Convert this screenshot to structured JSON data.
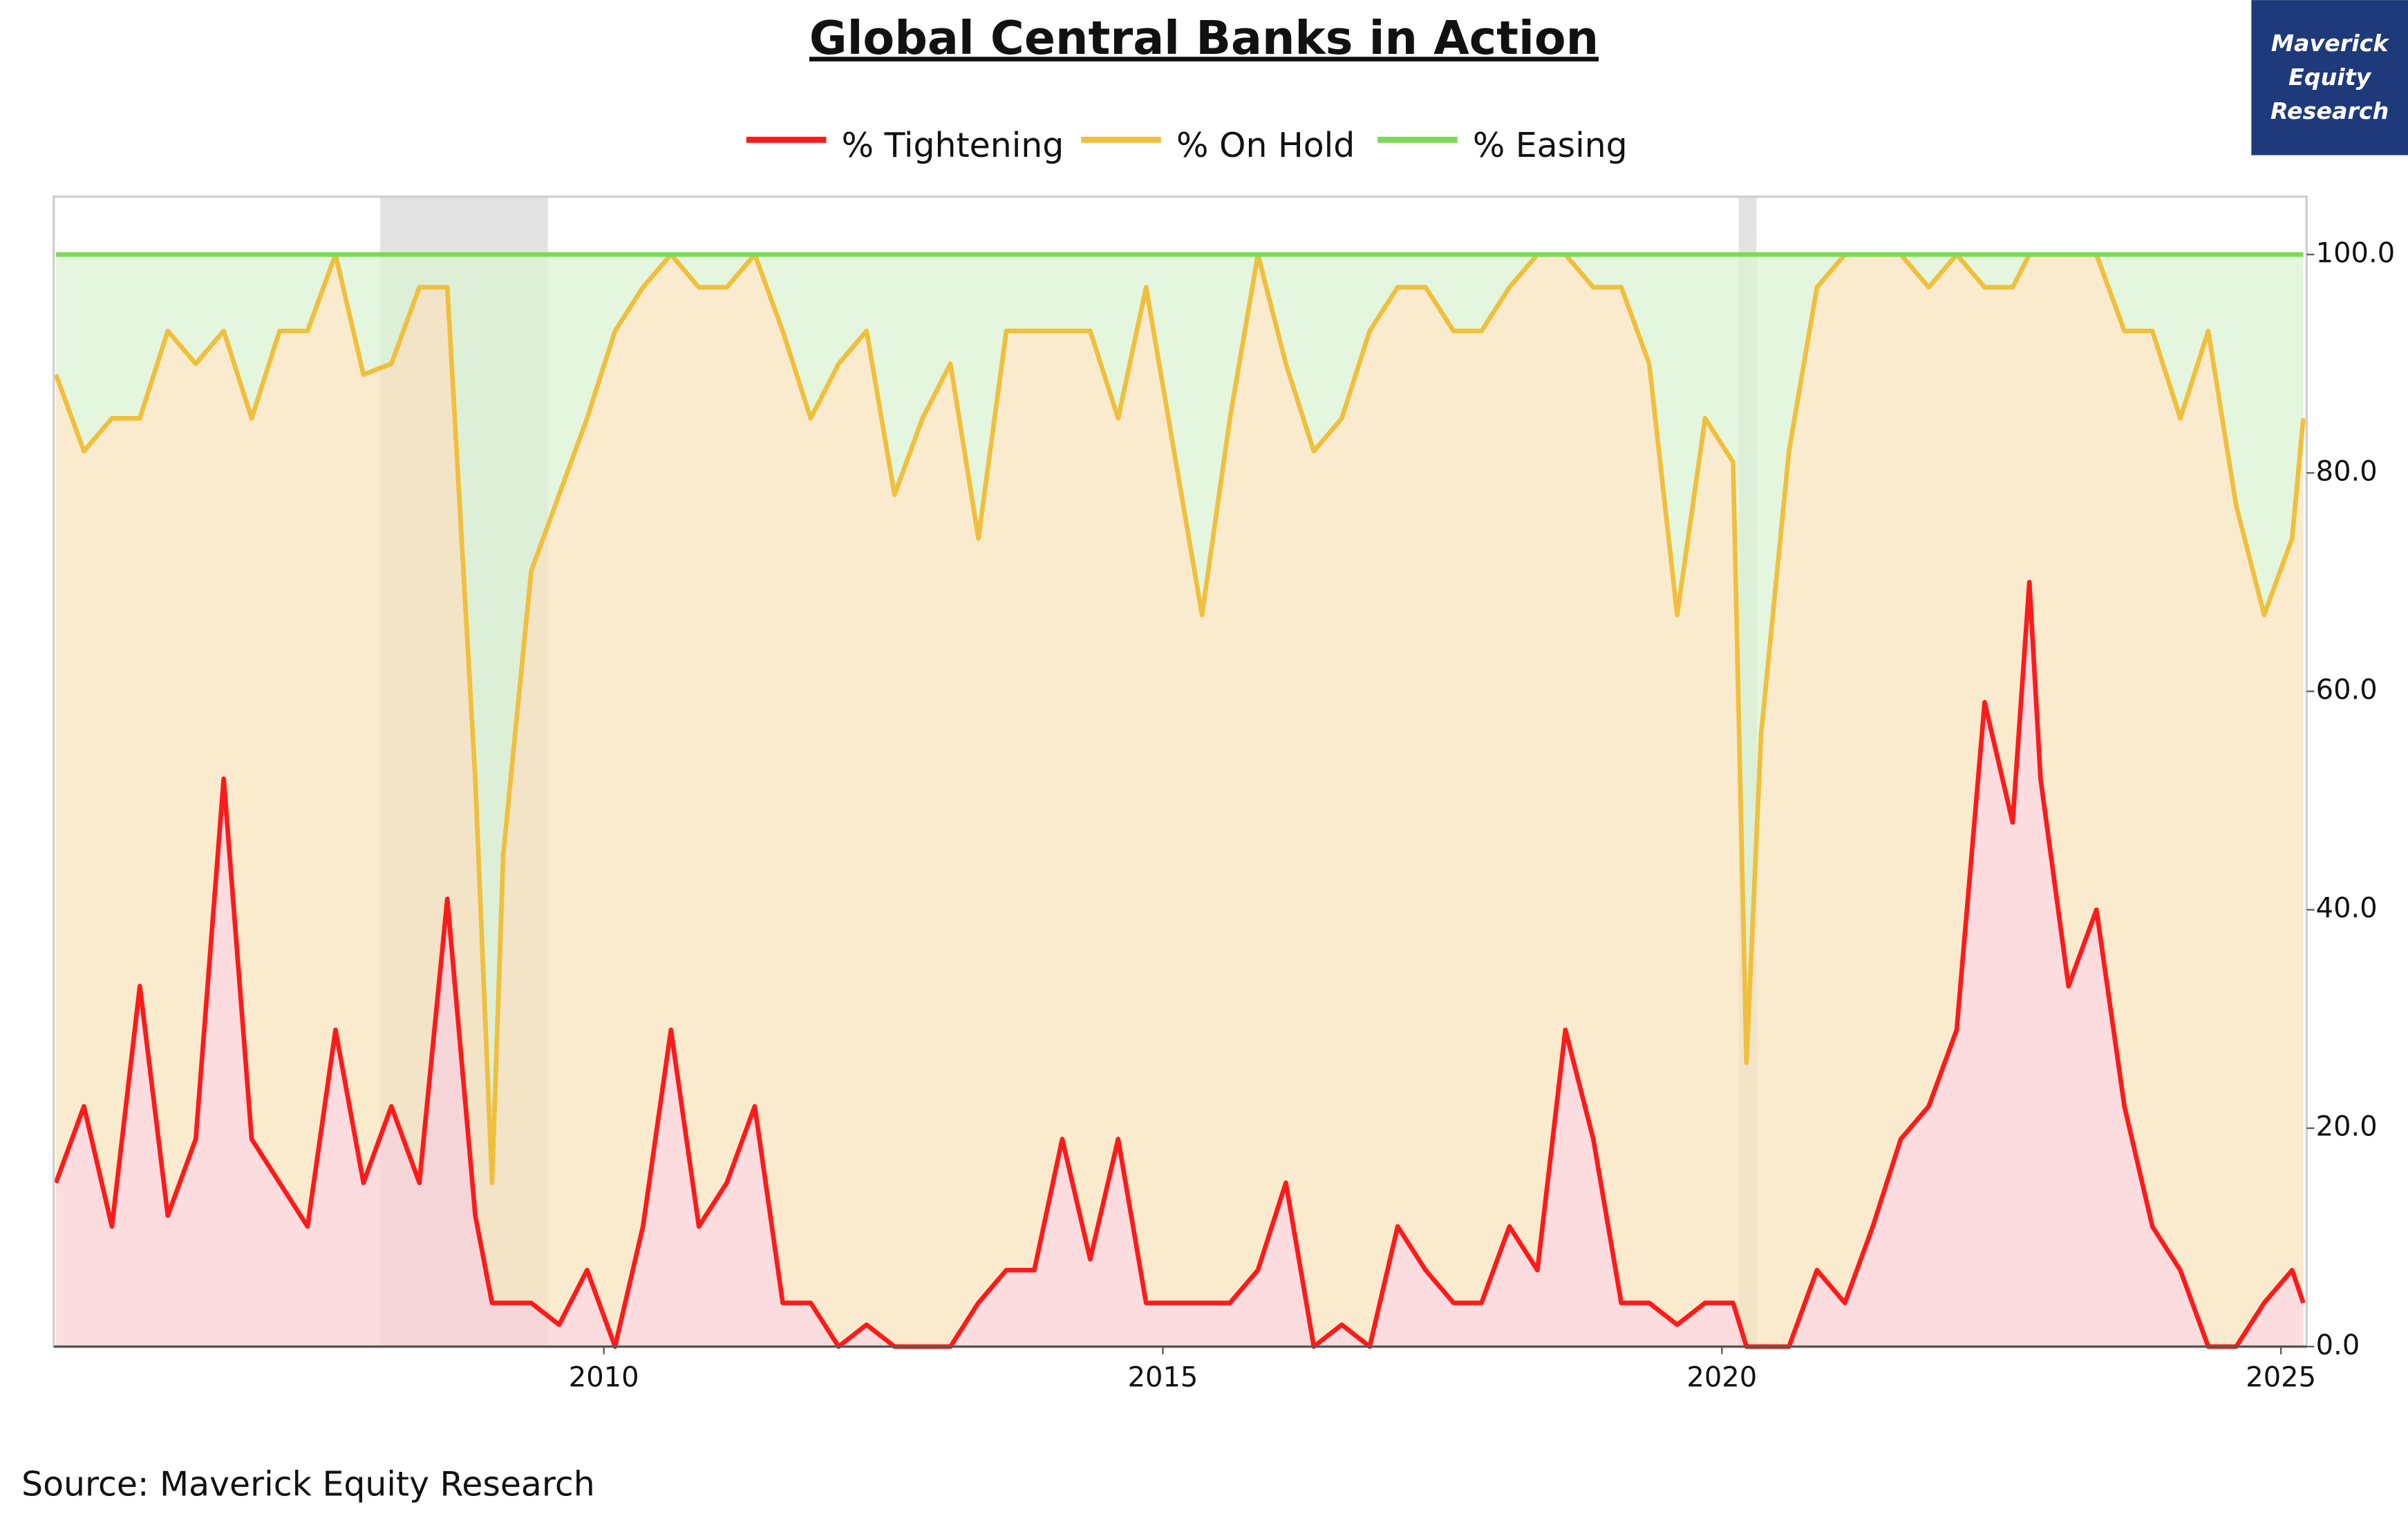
{
  "chart_data": {
    "type": "stacked-area",
    "title": "Global Central Banks in Action",
    "source": "Source: Maverick Equity Research",
    "brand": [
      "Maverick",
      "Equity",
      "Research"
    ],
    "x": [
      2005.1,
      2005.35,
      2005.6,
      2005.85,
      2006.1,
      2006.35,
      2006.6,
      2006.85,
      2007.1,
      2007.35,
      2007.6,
      2007.85,
      2008.1,
      2008.35,
      2008.6,
      2008.85,
      2009.0,
      2009.1,
      2009.35,
      2009.6,
      2009.85,
      2010.1,
      2010.35,
      2010.6,
      2010.85,
      2011.1,
      2011.35,
      2011.6,
      2011.85,
      2012.1,
      2012.35,
      2012.6,
      2012.85,
      2013.1,
      2013.35,
      2013.6,
      2013.85,
      2014.1,
      2014.35,
      2014.6,
      2014.85,
      2015.1,
      2015.35,
      2015.6,
      2015.85,
      2016.1,
      2016.35,
      2016.6,
      2016.85,
      2017.1,
      2017.35,
      2017.6,
      2017.85,
      2018.1,
      2018.35,
      2018.6,
      2018.85,
      2019.1,
      2019.35,
      2019.6,
      2019.85,
      2020.1,
      2020.22,
      2020.35,
      2020.6,
      2020.85,
      2021.1,
      2021.35,
      2021.6,
      2021.85,
      2022.1,
      2022.35,
      2022.6,
      2022.75,
      2022.85,
      2023.1,
      2023.35,
      2023.6,
      2023.85,
      2024.1,
      2024.35,
      2024.6,
      2024.85,
      2025.1,
      2025.2
    ],
    "series": [
      {
        "name": "% Tightening",
        "color": "#ff1a1a",
        "fill": "#fbd0d4",
        "values": [
          15,
          22,
          11,
          33,
          12,
          19,
          52,
          19,
          15,
          11,
          29,
          15,
          22,
          15,
          41,
          12,
          4,
          4,
          4,
          2,
          7,
          0,
          11,
          29,
          11,
          15,
          22,
          4,
          4,
          0,
          2,
          0,
          0,
          0,
          4,
          7,
          7,
          19,
          8,
          19,
          4,
          4,
          4,
          4,
          7,
          15,
          0,
          2,
          0,
          11,
          7,
          4,
          4,
          11,
          7,
          29,
          19,
          4,
          4,
          2,
          4,
          4,
          0,
          0,
          0,
          7,
          4,
          11,
          19,
          22,
          29,
          59,
          48,
          70,
          52,
          33,
          40,
          22,
          11,
          7,
          0,
          0,
          4,
          7,
          4
        ]
      },
      {
        "name": "% On Hold",
        "color": "#f0bf3c",
        "fill": "#f8e3bd",
        "values": [
          74,
          60,
          74,
          52,
          81,
          71,
          41,
          66,
          78,
          82,
          71,
          74,
          68,
          82,
          56,
          40,
          11,
          41,
          67,
          76,
          78,
          93,
          86,
          71,
          86,
          82,
          78,
          89,
          81,
          90,
          91,
          78,
          85,
          90,
          70,
          86,
          86,
          74,
          85,
          66,
          93,
          78,
          63,
          81,
          93,
          75,
          82,
          83,
          93,
          86,
          90,
          89,
          89,
          86,
          93,
          71,
          78,
          93,
          86,
          65,
          81,
          77,
          26,
          56,
          82,
          90,
          96,
          89,
          81,
          75,
          71,
          38,
          49,
          30,
          48,
          67,
          60,
          71,
          82,
          78,
          93,
          77,
          63,
          67,
          81
        ]
      },
      {
        "name": "% Easing",
        "color": "#7ed957",
        "fill": "#dcf3d3",
        "values": [
          11,
          18,
          15,
          15,
          7,
          10,
          7,
          15,
          7,
          7,
          0,
          11,
          10,
          3,
          3,
          48,
          85,
          55,
          29,
          22,
          15,
          7,
          3,
          0,
          3,
          3,
          0,
          7,
          15,
          10,
          7,
          22,
          15,
          10,
          26,
          7,
          7,
          7,
          7,
          15,
          3,
          18,
          33,
          15,
          0,
          10,
          18,
          15,
          7,
          3,
          3,
          7,
          7,
          3,
          0,
          0,
          3,
          3,
          10,
          33,
          15,
          19,
          74,
          44,
          18,
          3,
          0,
          0,
          0,
          3,
          0,
          3,
          3,
          0,
          0,
          0,
          0,
          7,
          7,
          15,
          7,
          23,
          33,
          26,
          15
        ]
      }
    ],
    "shaded_periods": [
      [
        2008.0,
        2009.5
      ],
      [
        2020.15,
        2020.31
      ]
    ],
    "xlim": [
      2005.08,
      2025.23
    ],
    "xticks": [
      2010,
      2015,
      2020,
      2025
    ],
    "ylim": [
      0,
      105.3
    ],
    "yticks": [
      {
        "value": 0,
        "label": "0.0"
      },
      {
        "value": 20,
        "label": "20.0"
      },
      {
        "value": 40,
        "label": "40.0"
      },
      {
        "value": 60,
        "label": "60.0"
      },
      {
        "value": 80,
        "label": "80.0"
      },
      {
        "value": 100,
        "label": "100.0"
      }
    ],
    "y_axis_side": "right"
  }
}
